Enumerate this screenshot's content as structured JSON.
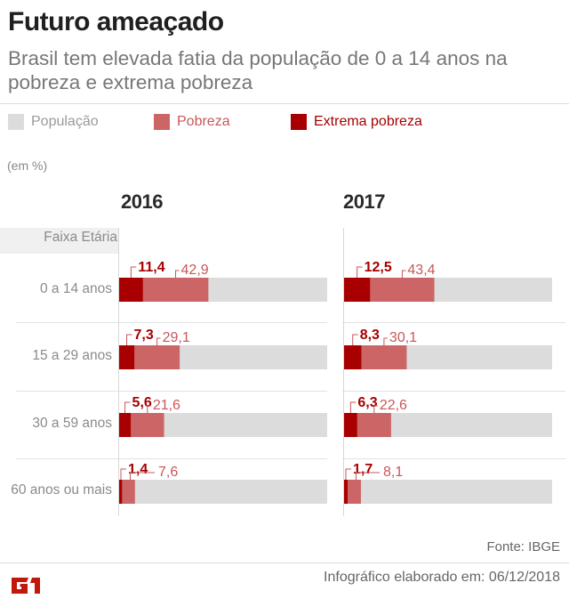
{
  "header": {
    "title": "Futuro ameaçado",
    "subtitle": "Brasil tem elevada fatia da população de 0 a 14 anos na pobreza e extrema pobreza"
  },
  "legend": [
    {
      "label": "População",
      "color": "#dcdcdc",
      "text_color": "#9a9a9a"
    },
    {
      "label": "Pobreza",
      "color": "#cb6566",
      "text_color": "#c8575a"
    },
    {
      "label": "Extrema pobreza",
      "color": "#a80000",
      "text_color": "#a50000"
    }
  ],
  "unit_label": "(em %)",
  "row_header": "Faixa Etária",
  "footer": {
    "source": "Fonte: IBGE",
    "date": "Infográfico elaborado em: 06/12/2018",
    "logo": "G1"
  },
  "chart_data": {
    "type": "bar",
    "title": "Futuro ameaçado",
    "subtitle": "Brasil tem elevada fatia da população de 0 a 14 anos na pobreza e extrema pobreza",
    "unit": "%",
    "xlim": [
      0,
      100
    ],
    "categories": [
      "0 a 14 anos",
      "15 a 29 anos",
      "30 a 59 anos",
      "60 anos ou mais"
    ],
    "panels": [
      {
        "year": "2016",
        "series": [
          {
            "name": "Extrema pobreza",
            "values": [
              11.4,
              7.3,
              5.6,
              1.4
            ],
            "labels": [
              "11,4",
              "7,3",
              "5,6",
              "1,4"
            ]
          },
          {
            "name": "Pobreza",
            "values": [
              42.9,
              29.1,
              21.6,
              7.6
            ],
            "labels": [
              "42,9",
              "29,1",
              "21,6",
              "7,6"
            ]
          },
          {
            "name": "População",
            "values": [
              100,
              100,
              100,
              100
            ]
          }
        ]
      },
      {
        "year": "2017",
        "series": [
          {
            "name": "Extrema pobreza",
            "values": [
              12.5,
              8.3,
              6.3,
              1.7
            ],
            "labels": [
              "12,5",
              "8,3",
              "6,3",
              "1,7"
            ]
          },
          {
            "name": "Pobreza",
            "values": [
              43.4,
              30.1,
              22.6,
              8.1
            ],
            "labels": [
              "43,4",
              "30,1",
              "22,6",
              "8,1"
            ]
          },
          {
            "name": "População",
            "values": [
              100,
              100,
              100,
              100
            ]
          }
        ]
      }
    ],
    "legend_position": "top-left",
    "grid": false
  }
}
